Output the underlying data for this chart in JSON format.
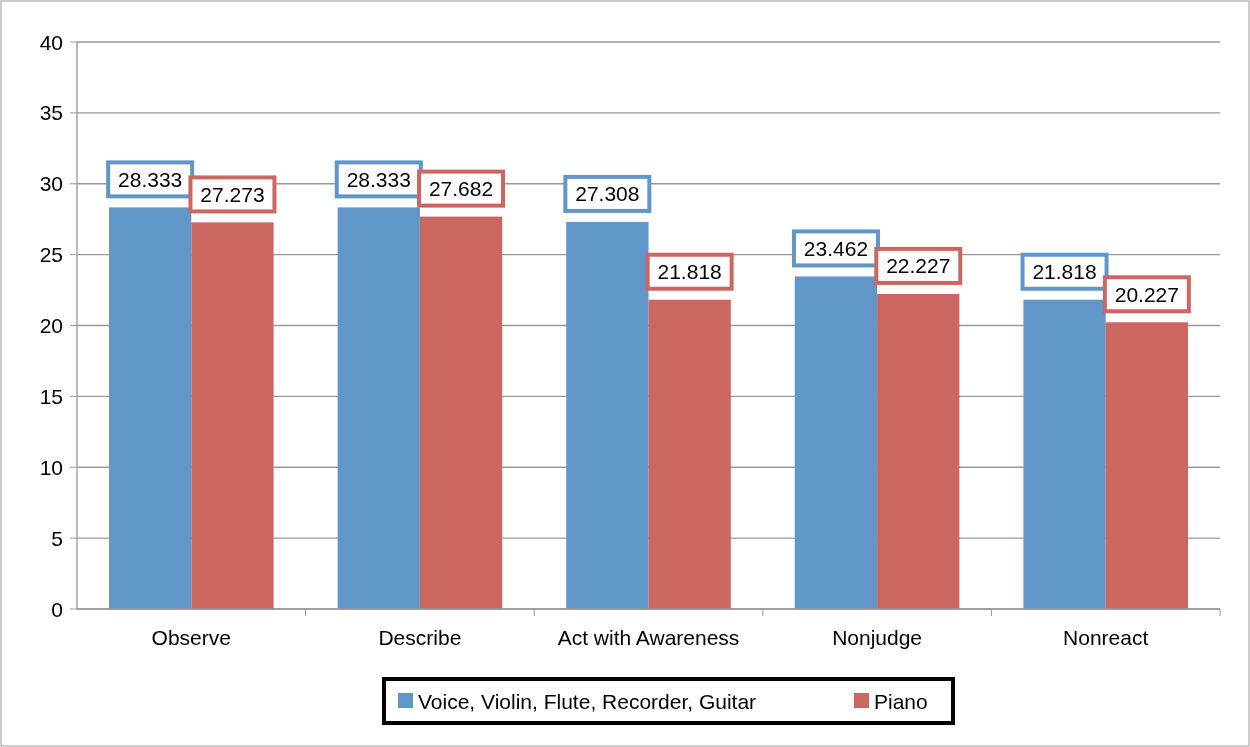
{
  "chart_data": {
    "type": "bar",
    "categories": [
      "Observe",
      "Describe",
      "Act with Awareness",
      "Nonjudge",
      "Nonreact"
    ],
    "series": [
      {
        "name": "Voice, Violin, Flute, Recorder, Guitar",
        "color": "#6096c8",
        "values": [
          28.333,
          28.333,
          27.308,
          23.462,
          21.818
        ]
      },
      {
        "name": "Piano",
        "color": "#cc6660",
        "values": [
          27.273,
          27.682,
          21.818,
          22.227,
          20.227
        ]
      }
    ],
    "ylim": [
      0,
      40
    ],
    "yticks": [
      0,
      5,
      10,
      15,
      20,
      25,
      30,
      35,
      40
    ],
    "grid": "y",
    "legend": "bottom",
    "data_labels": true
  }
}
